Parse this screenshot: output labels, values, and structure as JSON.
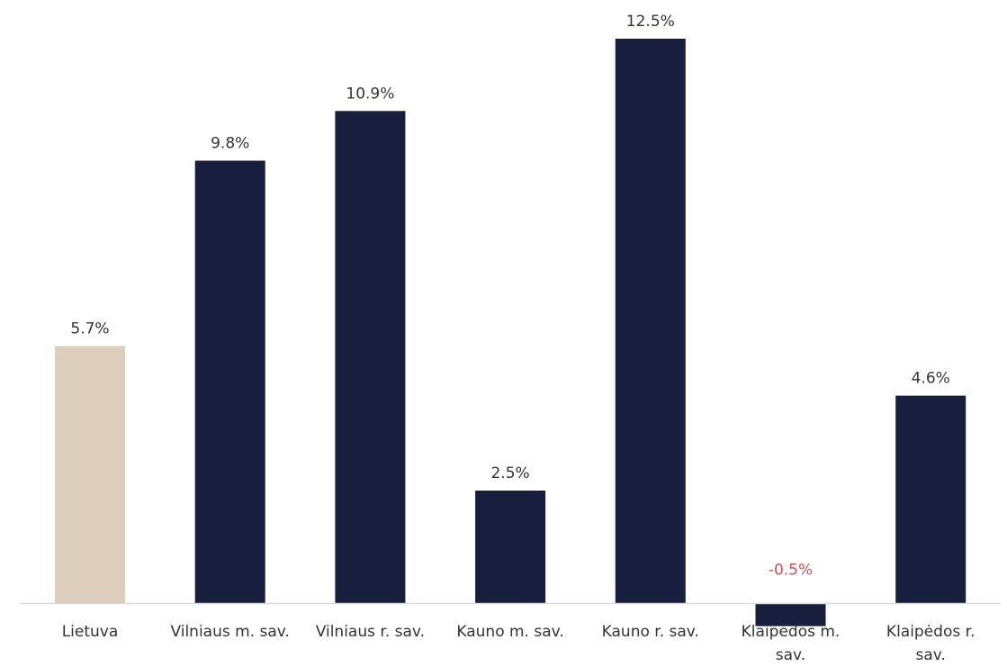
{
  "chart_data": {
    "type": "bar",
    "categories": [
      "Lietuva",
      "Vilniaus m. sav.",
      "Vilniaus r. sav.",
      "Kauno m. sav.",
      "Kauno r. sav.",
      "Klaipėdos m. sav.",
      "Klaipėdos r. sav."
    ],
    "category_lines": [
      [
        "Lietuva"
      ],
      [
        "Vilniaus m. sav."
      ],
      [
        "Vilniaus r. sav."
      ],
      [
        "Kauno m. sav."
      ],
      [
        "Kauno r. sav."
      ],
      [
        "Klaipėdos m.",
        "sav."
      ],
      [
        "Klaipėdos r.",
        "sav."
      ]
    ],
    "values": [
      5.7,
      9.8,
      10.9,
      2.5,
      12.5,
      -0.5,
      4.6
    ],
    "value_labels": [
      "5.7%",
      "9.8%",
      "10.9%",
      "2.5%",
      "12.5%",
      "-0.5%",
      "4.6%"
    ],
    "bar_colors": [
      "#ddcdbb",
      "#181e3d",
      "#181e3d",
      "#181e3d",
      "#181e3d",
      "#181e3d",
      "#181e3d"
    ],
    "negative_label_color": "#d0504f",
    "axis_line_color": "#d9d9d9",
    "title": "",
    "xlabel": "",
    "ylabel": "",
    "grid": false,
    "legend": "none"
  }
}
